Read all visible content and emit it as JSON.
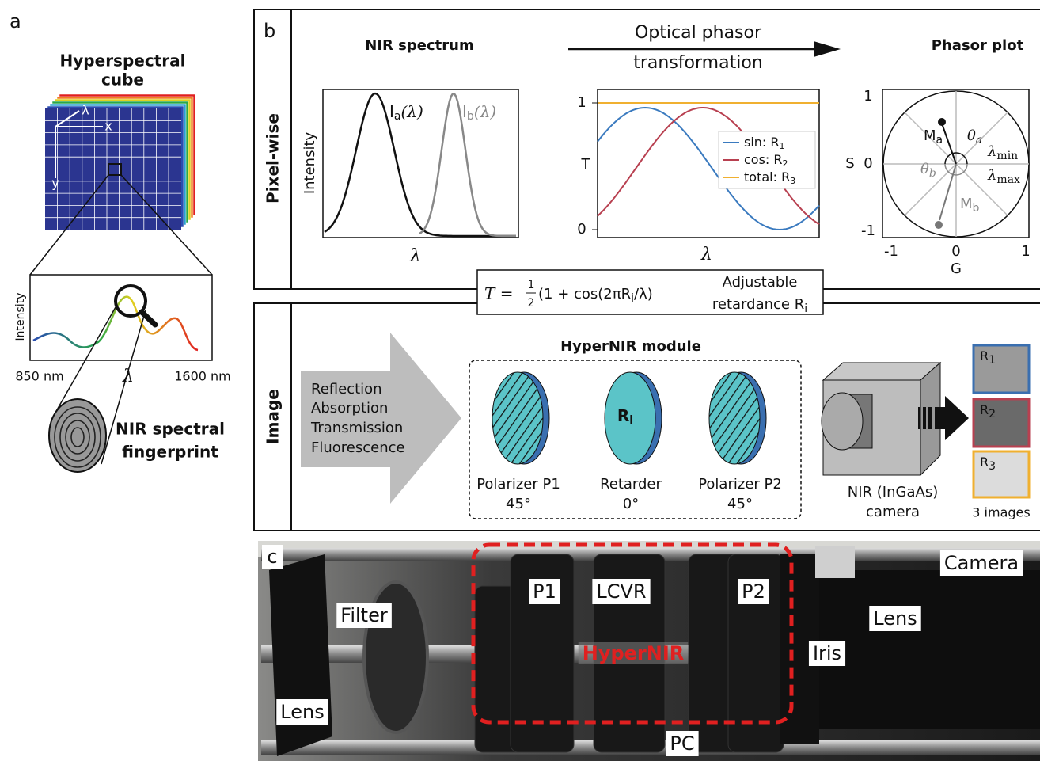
{
  "panel_a": {
    "letter": "a",
    "title_line1": "Hyperspectral",
    "title_line2": "cube",
    "cube_axis_lambda": "λ",
    "cube_axis_x": "x",
    "cube_axis_y": "y",
    "y_label": "Intensity",
    "x_start": "850 nm",
    "x_end": "1600 nm",
    "x_label": "λ",
    "fingerprint_line1": "NIR spectral",
    "fingerprint_line2": "fingerprint"
  },
  "panel_b": {
    "letter": "b",
    "row1_label": "Pixel-wise",
    "row2_label": "Image",
    "spectrum": {
      "title": "NIR spectrum",
      "y_label": "Intensity",
      "x_label": "λ",
      "curve_a": {
        "base": "I",
        "sub": "a",
        "tail": "(λ)"
      },
      "curve_b": {
        "base": "I",
        "sub": "b",
        "tail": "(λ)"
      }
    },
    "transformation": {
      "line1": "Optical phasor",
      "line2": "transformation"
    },
    "transmission": {
      "y_label": "T",
      "x_label": "λ",
      "yticks": [
        "1",
        "0"
      ],
      "legend": [
        {
          "text": "sin: R",
          "sub": "1"
        },
        {
          "text": "cos: R",
          "sub": "2"
        },
        {
          "text": "total: R",
          "sub": "3"
        }
      ]
    },
    "phasor": {
      "title": "Phasor plot",
      "y_label": "S",
      "x_label": "G",
      "yticks": [
        "1",
        "0",
        "-1"
      ],
      "xticks": [
        "-1",
        "0",
        "1"
      ],
      "Ma": {
        "base": "M",
        "sub": "a"
      },
      "Mb": {
        "base": "M",
        "sub": "b"
      },
      "theta_a": {
        "base": "θ",
        "sub": "a"
      },
      "theta_b": {
        "base": "θ",
        "sub": "b"
      },
      "lmin": {
        "base": "λ",
        "sub": "min"
      },
      "lmax": {
        "base": "λ",
        "sub": "max"
      }
    },
    "formula": {
      "lhs": "T = ",
      "num": "1",
      "den": "2",
      "rhs": "(1 + cos(2πR",
      "sub": "i",
      "tail": "/λ)"
    },
    "formula_note": {
      "line1": "Adjustable",
      "line2": "retardance R",
      "sub": "i"
    },
    "modes": [
      "Reflection",
      "Absorption",
      "Transmission",
      "Fluorescence"
    ],
    "module_title": "HyperNIR module",
    "retarder_symbol": {
      "base": "R",
      "sub": "i"
    },
    "elements": [
      {
        "name": "Polarizer P1",
        "angle": "45°"
      },
      {
        "name": "Retarder",
        "angle": "0°"
      },
      {
        "name": "Polarizer P2",
        "angle": "45°"
      }
    ],
    "camera_line1": "NIR (InGaAs)",
    "camera_line2": "camera",
    "images": [
      {
        "base": "R",
        "sub": "1"
      },
      {
        "base": "R",
        "sub": "2"
      },
      {
        "base": "R",
        "sub": "3"
      }
    ],
    "images_caption": "3 images"
  },
  "panel_c": {
    "letter": "c",
    "labels": {
      "camera": "Camera",
      "p1": "P1",
      "lcvr": "LCVR",
      "p2": "P2",
      "filter": "Filter",
      "lens_right": "Lens",
      "hypernir": "HyperNIR",
      "iris": "Iris",
      "lens_left": "Lens",
      "pc": "PC"
    }
  }
}
